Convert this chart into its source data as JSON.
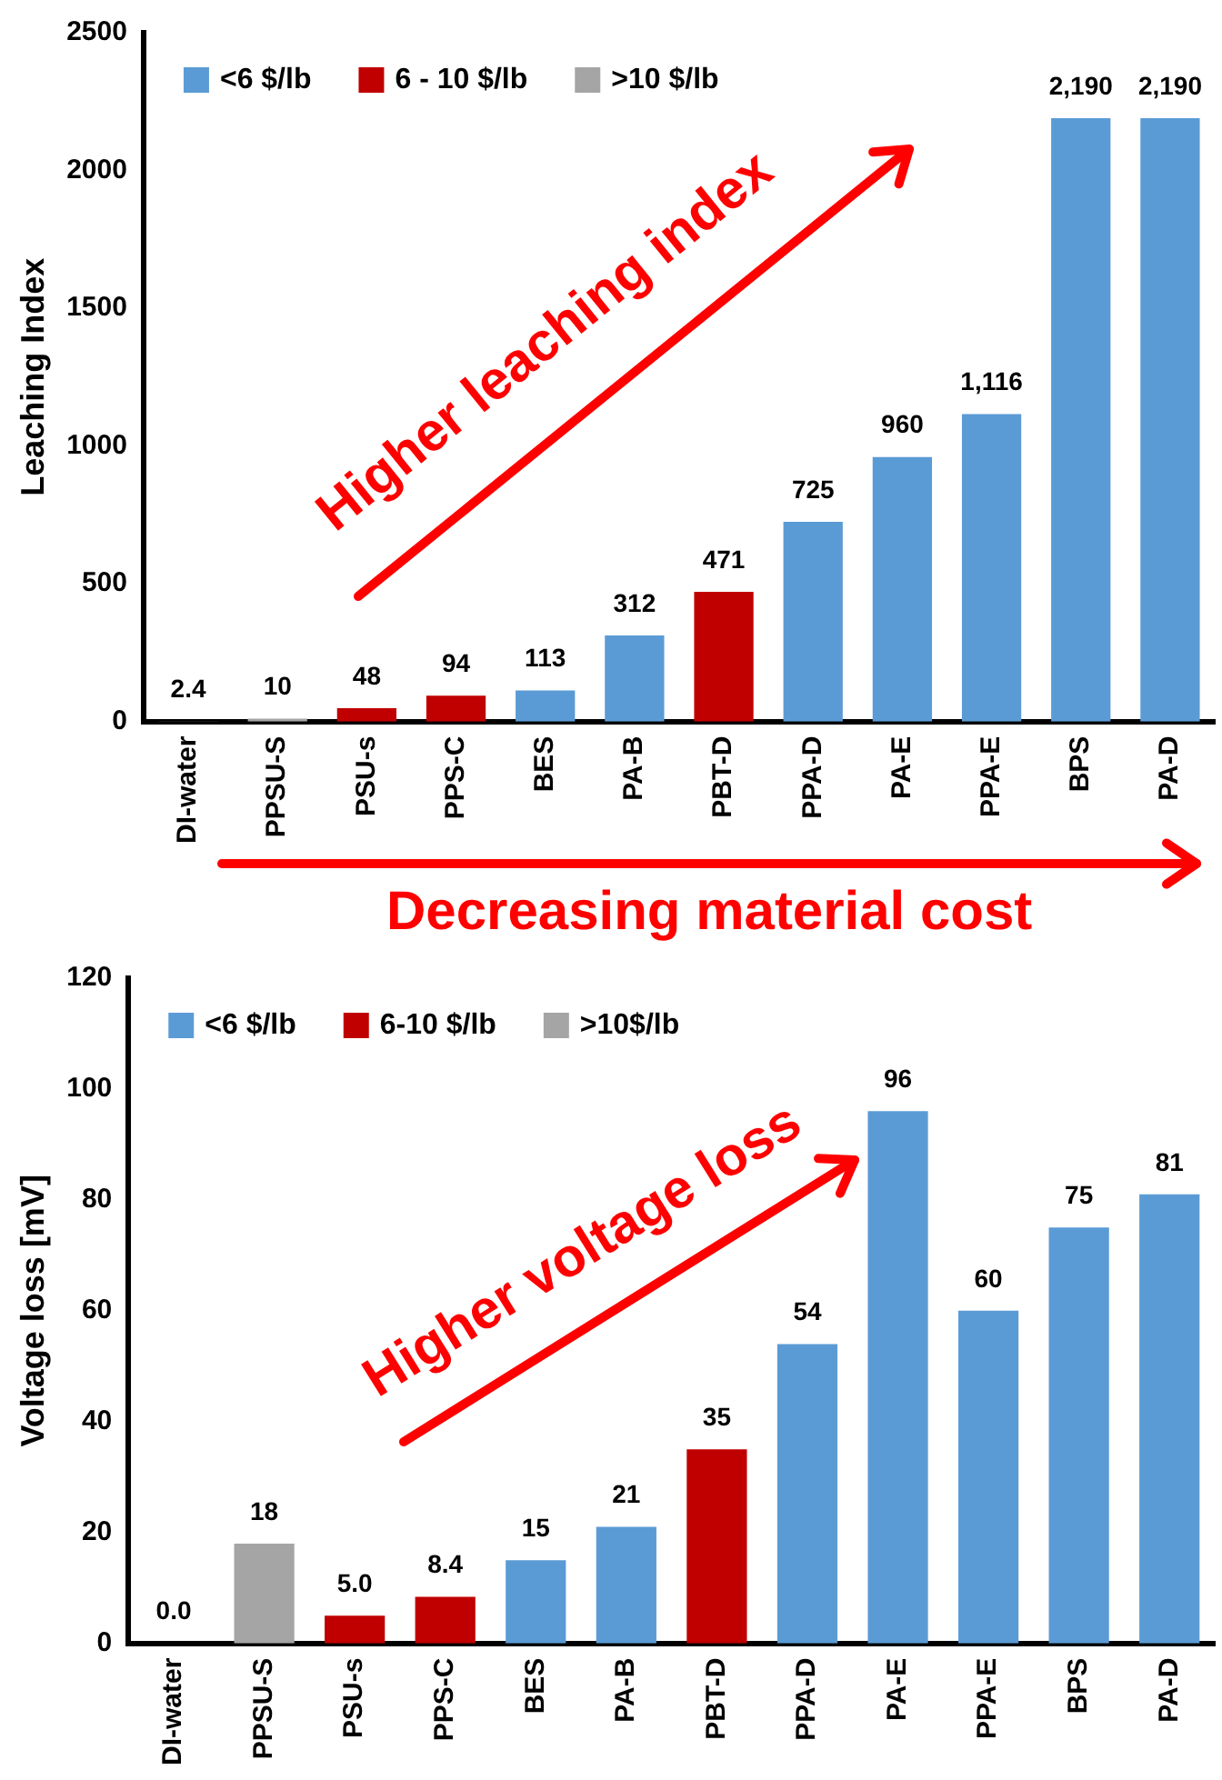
{
  "chart_data": [
    {
      "type": "bar",
      "ylabel": "Leaching Index",
      "categories": [
        "DI-water",
        "PPSU-S",
        "PSU-s",
        "PPS-C",
        "BES",
        "PA-B",
        "PBT-D",
        "PPA-D",
        "PA-E",
        "PPA-E",
        "BPS",
        "PA-D"
      ],
      "series": [
        {
          "color": "#262626",
          "values": [
            2.4,
            null,
            null,
            null,
            null,
            null,
            null,
            null,
            null,
            null,
            null,
            null
          ],
          "value_labels": [
            "2.4",
            null,
            null,
            null,
            null,
            null,
            null,
            null,
            null,
            null,
            null,
            null
          ]
        },
        {
          "name": "<6 $/lb",
          "color": "#5b9bd5",
          "values": [
            null,
            null,
            null,
            null,
            113,
            312,
            null,
            725,
            960,
            1116,
            2190,
            2190
          ],
          "value_labels": [
            null,
            null,
            null,
            null,
            "113",
            "312",
            null,
            "725",
            "960",
            "1,116",
            "2,190",
            "2,190"
          ]
        },
        {
          "name": "6 - 10 $/lb",
          "color": "#c00000",
          "values": [
            null,
            null,
            48,
            94,
            null,
            null,
            471,
            null,
            null,
            null,
            null,
            null
          ],
          "value_labels": [
            null,
            null,
            "48",
            "94",
            null,
            null,
            "471",
            null,
            null,
            null,
            null,
            null
          ]
        },
        {
          "name": ">10 $/lb",
          "color": "#a5a5a5",
          "values": [
            null,
            10,
            null,
            null,
            null,
            null,
            null,
            null,
            null,
            null,
            null,
            null
          ],
          "value_labels": [
            null,
            "10",
            null,
            null,
            null,
            null,
            null,
            null,
            null,
            null,
            null,
            null
          ]
        }
      ],
      "ylim": [
        0,
        2500
      ],
      "yticks": [
        0,
        500,
        1000,
        1500,
        2000,
        2500
      ],
      "grid": false,
      "legend": "top left",
      "annotations": [
        "Higher leaching index",
        "Decreasing material cost"
      ]
    },
    {
      "type": "bar",
      "ylabel": "Voltage loss [mV]",
      "categories": [
        "DI-water",
        "PPSU-S",
        "PSU-s",
        "PPS-C",
        "BES",
        "PA-B",
        "PBT-D",
        "PPA-D",
        "PA-E",
        "PPA-E",
        "BPS",
        "PA-D"
      ],
      "series": [
        {
          "color": "#262626",
          "values": [
            0.0,
            null,
            null,
            null,
            null,
            null,
            null,
            null,
            null,
            null,
            null,
            null
          ],
          "value_labels": [
            "0.0",
            null,
            null,
            null,
            null,
            null,
            null,
            null,
            null,
            null,
            null,
            null
          ]
        },
        {
          "name": "<6 $/lb",
          "color": "#5b9bd5",
          "values": [
            null,
            null,
            null,
            null,
            15,
            21,
            null,
            54,
            96,
            60,
            75,
            81
          ],
          "value_labels": [
            null,
            null,
            null,
            null,
            "15",
            "21",
            null,
            "54",
            "96",
            "60",
            "75",
            "81"
          ]
        },
        {
          "name": "6-10 $/lb",
          "color": "#c00000",
          "values": [
            null,
            null,
            5.0,
            8.4,
            null,
            null,
            35,
            null,
            null,
            null,
            null,
            null
          ],
          "value_labels": [
            null,
            null,
            "5.0",
            "8.4",
            null,
            null,
            "35",
            null,
            null,
            null,
            null,
            null
          ]
        },
        {
          "name": ">10$/lb",
          "color": "#a5a5a5",
          "values": [
            null,
            18,
            null,
            null,
            null,
            null,
            null,
            null,
            null,
            null,
            null,
            null
          ],
          "value_labels": [
            null,
            "18",
            null,
            null,
            null,
            null,
            null,
            null,
            null,
            null,
            null,
            null
          ]
        }
      ],
      "ylim": [
        0,
        120
      ],
      "yticks": [
        0,
        20,
        40,
        60,
        80,
        100,
        120
      ],
      "grid": false,
      "legend": "top left",
      "annotations": [
        "Higher voltage loss"
      ]
    }
  ]
}
